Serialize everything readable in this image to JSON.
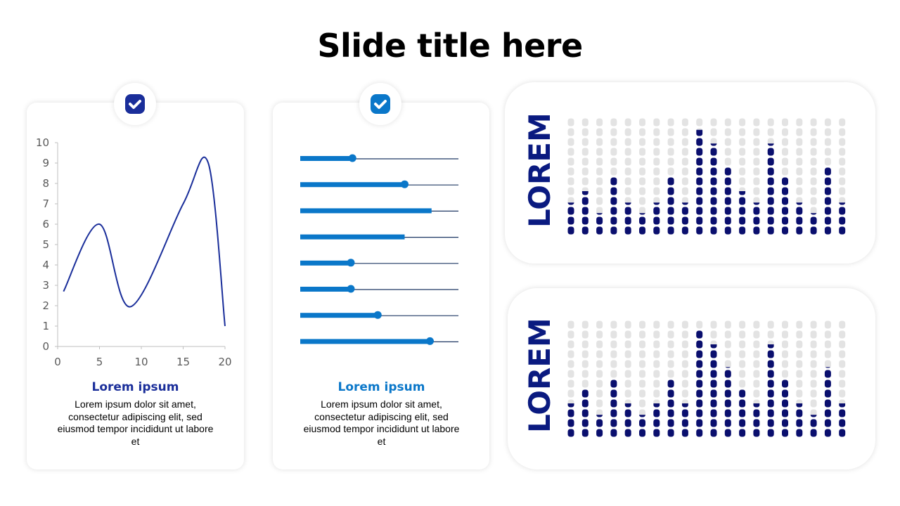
{
  "title": "Slide title here",
  "colors": {
    "navy": "#0a0f6e",
    "line": "#1a2e9a",
    "blue": "#0a77c9",
    "dot_empty": "#e3e3e3",
    "lorem": "#0a1a80"
  },
  "cards": [
    {
      "icon": "check-icon",
      "icon_color": "#1a2e9a",
      "caption": "Lorem ipsum",
      "caption_color": "#1a2e9a",
      "text": "Lorem ipsum dolor sit amet, consectetur adipiscing elit, sed eiusmod tempor incididunt ut labore et"
    },
    {
      "icon": "check-icon",
      "icon_color": "#0a77c9",
      "caption": "Lorem ipsum",
      "caption_color": "#0a77c9",
      "text": "Lorem ipsum dolor sit amet, consectetur adipiscing elit, sed eiusmod tempor incididunt ut labore et"
    }
  ],
  "panels": [
    {
      "label": "LOREM"
    },
    {
      "label": "LOREM"
    }
  ],
  "chart_data": [
    {
      "type": "line",
      "smooth": true,
      "x": [
        0.7,
        5,
        8.7,
        15,
        18,
        20
      ],
      "y": [
        2.7,
        6,
        1.95,
        7,
        9,
        1
      ],
      "xlim": [
        0,
        20
      ],
      "ylim": [
        0,
        10
      ],
      "xticks": [
        "0",
        "5",
        "10",
        "15",
        "20"
      ],
      "yticks": [
        "0",
        "1",
        "2",
        "3",
        "4",
        "5",
        "6",
        "7",
        "8",
        "9",
        "10"
      ],
      "grid": false
    },
    {
      "type": "bar",
      "orientation": "horizontal",
      "values": [
        0.33,
        0.66,
        0.83,
        0.66,
        0.32,
        0.32,
        0.49,
        0.82
      ],
      "end_marker": [
        true,
        true,
        false,
        false,
        true,
        true,
        true,
        true
      ],
      "xlim": [
        0,
        1
      ]
    },
    {
      "type": "bar",
      "style": "dot-column",
      "max": 12,
      "values": [
        3.3,
        4.5,
        2.2,
        6,
        3.3,
        2.2,
        3.3,
        6,
        3.3,
        10.8,
        9.3,
        7,
        4.5,
        3.3,
        9.3,
        6,
        3.3,
        2.2,
        7,
        3.3
      ]
    },
    {
      "type": "bar",
      "style": "dot-column",
      "max": 12,
      "values": [
        3.5,
        5,
        2.3,
        6,
        3.5,
        2.3,
        3.5,
        6,
        3.5,
        11,
        9.5,
        7.1,
        5,
        3.5,
        9.5,
        6,
        3.5,
        2.3,
        7.1,
        3.5
      ]
    }
  ]
}
